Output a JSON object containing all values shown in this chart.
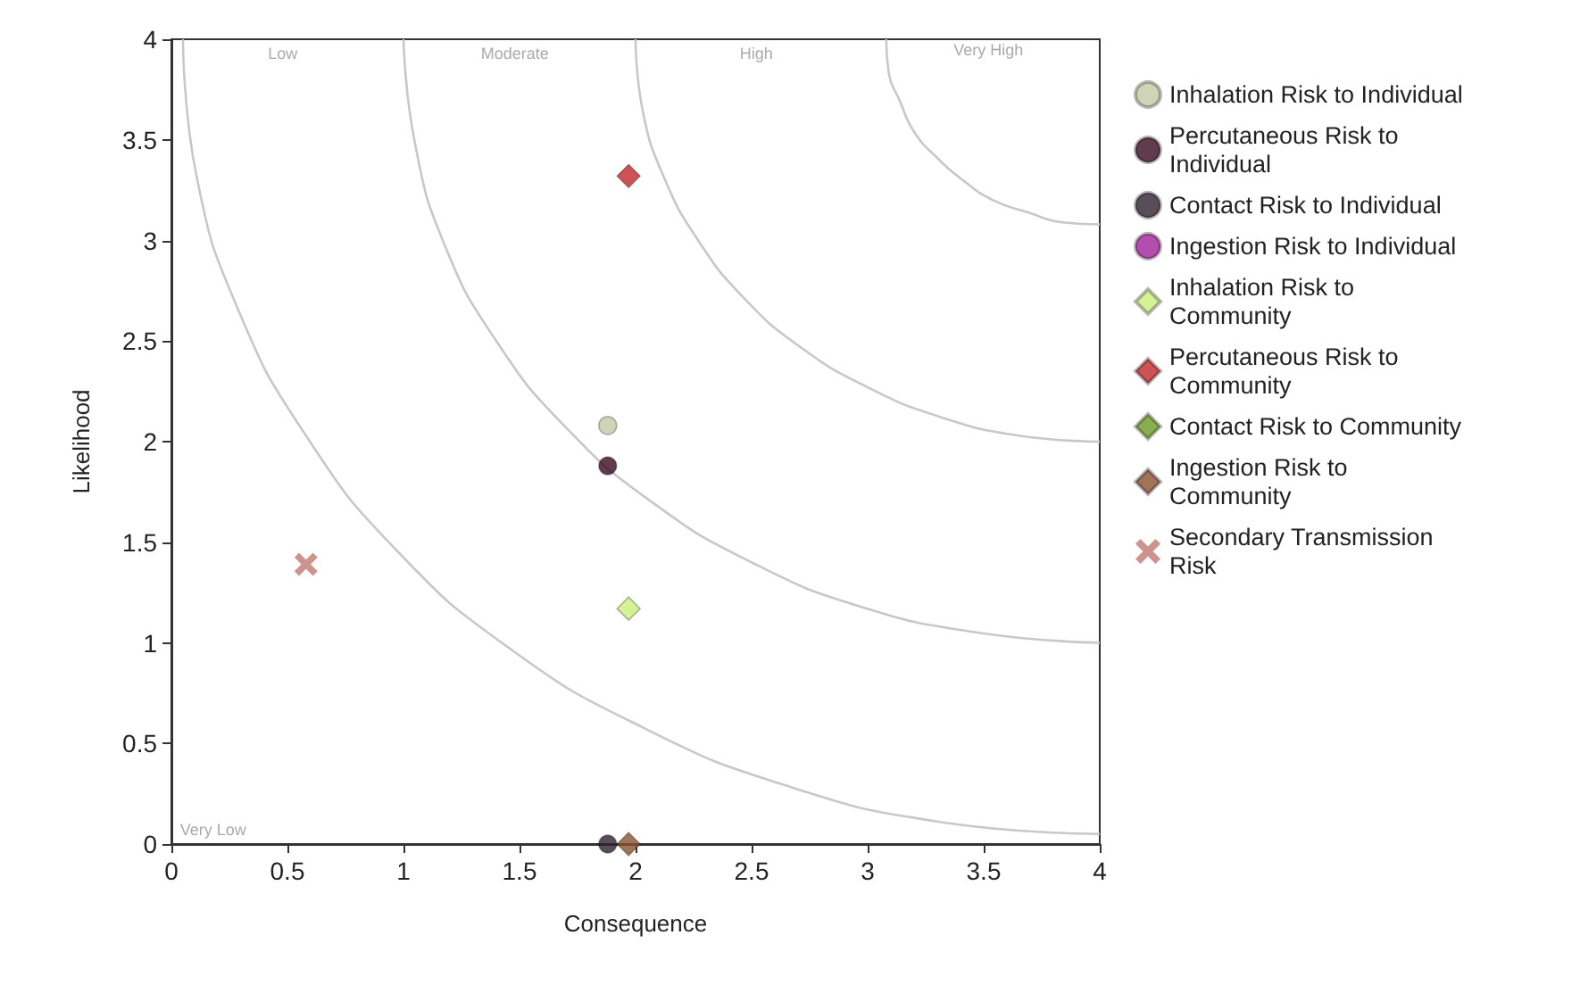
{
  "chart_data": {
    "type": "scatter",
    "xlabel": "Consequence",
    "ylabel": "Likelihood",
    "xlim": [
      0,
      4
    ],
    "ylim": [
      0,
      4
    ],
    "xticks": [
      0,
      0.5,
      1,
      1.5,
      2,
      2.5,
      3,
      3.5,
      4
    ],
    "yticks": [
      0,
      0.5,
      1,
      1.5,
      2,
      2.5,
      3,
      3.5,
      4
    ],
    "grid": false,
    "legend": "right",
    "annotations": [
      "Low",
      "Moderate",
      "High",
      "Very High",
      "Very Low"
    ],
    "series": [
      {
        "type": "line",
        "color": "#c8c8c8",
        "marker": "none",
        "x": [
          0.05,
          0.11,
          0.29,
          0.58,
          0.97,
          1.46,
          2.03,
          2.65,
          3.31,
          4
        ],
        "values": [
          4,
          3.31,
          2.65,
          2.03,
          1.46,
          0.97,
          0.58,
          0.29,
          0.11,
          0.05
        ]
      },
      {
        "type": "line",
        "color": "#c8c8c8",
        "marker": "none",
        "x": [
          1,
          1.05,
          1.18,
          1.4,
          1.7,
          2.07,
          2.5,
          2.97,
          3.48,
          4
        ],
        "values": [
          4,
          3.48,
          2.97,
          2.5,
          2.07,
          1.7,
          1.4,
          1.18,
          1.05,
          1
        ]
      },
      {
        "type": "line",
        "color": "#c8c8c8",
        "marker": "none",
        "x": [
          2,
          2.03,
          2.12,
          2.27,
          2.47,
          2.71,
          3,
          3.32,
          3.65,
          4
        ],
        "values": [
          4,
          3.65,
          3.32,
          3,
          2.71,
          2.47,
          2.27,
          2.12,
          2.03,
          2
        ]
      },
      {
        "type": "line",
        "color": "#c8c8c8",
        "marker": "none",
        "x": [
          3.08,
          3.09,
          3.14,
          3.2,
          3.3,
          3.41,
          3.54,
          3.69,
          3.84,
          4
        ],
        "values": [
          4,
          3.84,
          3.69,
          3.54,
          3.41,
          3.3,
          3.2,
          3.14,
          3.09,
          3.08
        ]
      },
      {
        "name": "Inhalation Risk to Individual",
        "color": "#c2c9a3",
        "marker": "circle",
        "x": [
          1.88
        ],
        "values": [
          2.08
        ]
      },
      {
        "name": "Percutaneous Risk to Individual",
        "color": "#3a0a22",
        "marker": "circle",
        "x": [
          1.88
        ],
        "values": [
          1.88
        ]
      },
      {
        "name": "Contact Risk to Individual",
        "color": "#2e2030",
        "marker": "circle",
        "x": [
          1.88
        ],
        "values": [
          0
        ]
      },
      {
        "name": "Ingestion Risk to Individual",
        "color": "#a0209a",
        "marker": "circle",
        "x": [
          null
        ],
        "values": [
          null
        ]
      },
      {
        "name": "Inhalation Risk to Community",
        "color": "#c8f07c",
        "marker": "diamond",
        "x": [
          1.97
        ],
        "values": [
          1.17
        ]
      },
      {
        "name": "Percutaneous Risk to Community",
        "color": "#c0282c",
        "marker": "diamond",
        "x": [
          1.97
        ],
        "values": [
          3.32
        ]
      },
      {
        "name": "Contact Risk to Community",
        "color": "#6a9a20",
        "marker": "diamond",
        "x": [
          null
        ],
        "values": [
          null
        ]
      },
      {
        "name": "Ingestion Risk to Community",
        "color": "#8a5030",
        "marker": "diamond",
        "x": [
          1.97
        ],
        "values": [
          0
        ]
      },
      {
        "name": "Secondary Transmission Risk",
        "color": "#c07870",
        "marker": "cross",
        "x": [
          0.58
        ],
        "values": [
          1.39
        ]
      }
    ]
  }
}
